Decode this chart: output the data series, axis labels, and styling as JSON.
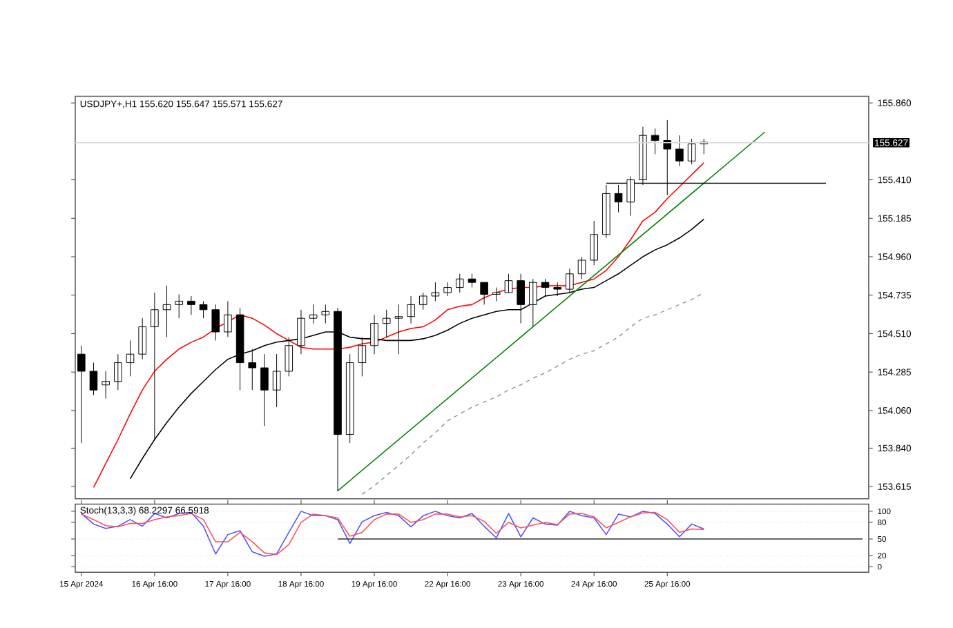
{
  "chart_data": [
    {
      "type": "candlestick",
      "title": "USDJPY+,H1 155.620 155.647 155.571 155.627",
      "color": "#000000",
      "categories": [
        null,
        null,
        null,
        null,
        null,
        null,
        null,
        null,
        null,
        null,
        null,
        null,
        null,
        null,
        null,
        null,
        null,
        null,
        null,
        null,
        null,
        null,
        null,
        null,
        null,
        null,
        null,
        null,
        null,
        null,
        null,
        null,
        null,
        null,
        null,
        null,
        null,
        null,
        null,
        null,
        null,
        null,
        null,
        null,
        null,
        null,
        null,
        null,
        null,
        null,
        null,
        null,
        null,
        null,
        null,
        null,
        null,
        null,
        null,
        null,
        null,
        null,
        null,
        null,
        null
      ],
      "ohlc": [
        [
          154.39,
          154.44,
          153.87,
          154.29
        ],
        [
          154.29,
          154.34,
          154.15,
          154.18
        ],
        [
          154.21,
          154.29,
          154.13,
          154.23
        ],
        [
          154.23,
          154.39,
          154.18,
          154.34
        ],
        [
          154.34,
          154.47,
          154.26,
          154.39
        ],
        [
          154.39,
          154.6,
          154.36,
          154.55
        ],
        [
          154.55,
          154.75,
          153.89,
          154.65
        ],
        [
          154.65,
          154.79,
          154.49,
          154.68
        ],
        [
          154.68,
          154.74,
          154.6,
          154.7
        ],
        [
          154.7,
          154.73,
          154.62,
          154.68
        ],
        [
          154.68,
          154.7,
          154.6,
          154.65
        ],
        [
          154.65,
          154.68,
          154.47,
          154.52
        ],
        [
          154.52,
          154.7,
          154.49,
          154.62
        ],
        [
          154.62,
          154.66,
          154.18,
          154.34
        ],
        [
          154.34,
          154.42,
          154.18,
          154.31
        ],
        [
          154.31,
          154.39,
          153.97,
          154.18
        ],
        [
          154.18,
          154.39,
          154.08,
          154.29
        ],
        [
          154.29,
          154.49,
          154.26,
          154.44
        ],
        [
          154.44,
          154.65,
          154.39,
          154.6
        ],
        [
          154.6,
          154.68,
          154.57,
          154.62
        ],
        [
          154.62,
          154.68,
          154.57,
          154.64
        ],
        [
          154.64,
          154.66,
          153.59,
          153.92
        ],
        [
          153.92,
          154.39,
          153.87,
          154.34
        ],
        [
          154.34,
          154.49,
          154.26,
          154.44
        ],
        [
          154.44,
          154.62,
          154.39,
          154.57
        ],
        [
          154.57,
          154.65,
          154.49,
          154.6
        ],
        [
          154.6,
          154.68,
          154.39,
          154.61
        ],
        [
          154.61,
          154.73,
          154.57,
          154.68
        ],
        [
          154.68,
          154.75,
          154.65,
          154.73
        ],
        [
          154.73,
          154.81,
          154.7,
          154.75
        ],
        [
          154.75,
          154.81,
          154.73,
          154.78
        ],
        [
          154.78,
          154.86,
          154.75,
          154.83
        ],
        [
          154.83,
          154.86,
          154.78,
          154.81
        ],
        [
          154.81,
          154.81,
          154.68,
          154.74
        ],
        [
          154.74,
          154.78,
          154.7,
          154.75
        ],
        [
          154.75,
          154.86,
          154.75,
          154.82
        ],
        [
          154.82,
          154.86,
          154.57,
          154.68
        ],
        [
          154.68,
          154.83,
          154.55,
          154.81
        ],
        [
          154.81,
          154.83,
          154.73,
          154.78
        ],
        [
          154.78,
          154.81,
          154.73,
          154.77
        ],
        [
          154.77,
          154.89,
          154.75,
          154.86
        ],
        [
          154.86,
          154.96,
          154.83,
          154.94
        ],
        [
          154.94,
          155.17,
          154.91,
          155.09
        ],
        [
          155.09,
          155.38,
          155.07,
          155.33
        ],
        [
          155.33,
          155.38,
          155.22,
          155.28
        ],
        [
          155.28,
          155.43,
          155.2,
          155.41
        ],
        [
          155.41,
          155.72,
          155.38,
          155.67
        ],
        [
          155.67,
          155.71,
          155.56,
          155.64
        ],
        [
          155.64,
          155.76,
          155.32,
          155.59
        ],
        [
          155.59,
          155.67,
          155.49,
          155.52
        ],
        [
          155.52,
          155.65,
          155.5,
          155.62
        ],
        [
          155.62,
          155.65,
          155.56,
          155.63
        ],
        null,
        null,
        null,
        null,
        null,
        null,
        null,
        null,
        null,
        null,
        null,
        null,
        null
      ],
      "series": [
        {
          "type": "line",
          "color": "#ff0000",
          "values": [
            null,
            153.61,
            153.75,
            153.89,
            154.04,
            154.18,
            154.29,
            154.36,
            154.42,
            154.46,
            154.49,
            154.54,
            154.58,
            154.62,
            154.6,
            154.56,
            154.51,
            154.47,
            154.43,
            154.42,
            154.42,
            154.42,
            154.43,
            154.45,
            154.46,
            154.49,
            154.52,
            154.54,
            154.55,
            154.59,
            154.65,
            154.67,
            154.68,
            154.72,
            154.75,
            154.77,
            154.78,
            154.78,
            154.79,
            154.79,
            154.79,
            154.81,
            154.83,
            154.88,
            154.96,
            155.06,
            155.17,
            155.22,
            155.3,
            155.37,
            155.44,
            155.51,
            null,
            null,
            null,
            null,
            null,
            null,
            null,
            null,
            null,
            null,
            null,
            null,
            null
          ]
        },
        {
          "type": "line",
          "color": "#000000",
          "values": [
            null,
            null,
            null,
            null,
            153.66,
            153.78,
            153.89,
            153.99,
            154.08,
            154.16,
            154.23,
            154.3,
            154.36,
            154.39,
            154.41,
            154.44,
            154.46,
            154.47,
            154.48,
            154.5,
            154.52,
            154.52,
            154.49,
            154.48,
            154.48,
            154.47,
            154.47,
            154.47,
            154.48,
            154.5,
            154.53,
            154.57,
            154.6,
            154.62,
            154.64,
            154.65,
            154.65,
            154.69,
            154.73,
            154.74,
            154.75,
            154.77,
            154.78,
            154.82,
            154.86,
            154.91,
            154.96,
            155.0,
            155.03,
            155.07,
            155.12,
            155.18,
            null,
            null,
            null,
            null,
            null,
            null,
            null,
            null,
            null,
            null,
            null,
            null,
            null
          ]
        },
        {
          "type": "line",
          "color": "#999999",
          "line_style": "dashed",
          "values": [
            null,
            null,
            null,
            null,
            null,
            null,
            null,
            null,
            null,
            null,
            null,
            null,
            null,
            null,
            null,
            null,
            null,
            null,
            null,
            null,
            null,
            null,
            null,
            153.57,
            153.62,
            153.68,
            153.74,
            153.8,
            153.87,
            153.93,
            154.0,
            154.04,
            154.08,
            154.11,
            154.14,
            154.18,
            154.21,
            154.25,
            154.28,
            154.32,
            154.36,
            154.39,
            154.41,
            154.45,
            154.49,
            154.55,
            154.6,
            154.62,
            154.65,
            154.68,
            154.71,
            154.75,
            null,
            null,
            null,
            null,
            null,
            null,
            null,
            null,
            null,
            null,
            null,
            null,
            null
          ]
        },
        {
          "type": "line",
          "color": "#008000",
          "values": [
            null,
            null,
            null,
            null,
            null,
            null,
            null,
            null,
            null,
            null,
            null,
            null,
            null,
            null,
            null,
            null,
            null,
            null,
            null,
            null,
            null,
            153.59,
            null,
            null,
            null,
            null,
            null,
            null,
            null,
            null,
            null,
            null,
            null,
            null,
            null,
            null,
            null,
            null,
            null,
            null,
            null,
            null,
            null,
            null,
            null,
            null,
            null,
            null,
            null,
            null,
            null,
            null,
            null,
            null,
            null,
            null,
            155.69,
            null,
            null,
            null,
            null,
            null,
            null,
            null,
            null
          ]
        },
        {
          "type": "line",
          "color": "#000000",
          "values": [
            null,
            null,
            null,
            null,
            null,
            null,
            null,
            null,
            null,
            null,
            null,
            null,
            null,
            null,
            null,
            null,
            null,
            null,
            null,
            null,
            null,
            null,
            null,
            null,
            null,
            null,
            null,
            null,
            null,
            null,
            null,
            null,
            null,
            null,
            null,
            null,
            null,
            null,
            null,
            null,
            null,
            null,
            null,
            155.39,
            null,
            null,
            null,
            null,
            null,
            null,
            null,
            null,
            null,
            null,
            null,
            null,
            null,
            null,
            null,
            null,
            null,
            155.39,
            null,
            null,
            null
          ]
        }
      ],
      "ref_lines": [
        {
          "axis": "y",
          "value": 155.627,
          "label": "155.627",
          "color": "#d9d9d9"
        }
      ],
      "ylim": [
        153.544,
        155.899
      ],
      "yticks": [
        {
          "value": 153.615,
          "label": "153.615"
        },
        {
          "value": 153.84,
          "label": "153.840"
        },
        {
          "value": 154.06,
          "label": "154.060"
        },
        {
          "value": 154.285,
          "label": "154.285"
        },
        {
          "value": 154.51,
          "label": "154.510"
        },
        {
          "value": 154.735,
          "label": "154.735"
        },
        {
          "value": 154.96,
          "label": "154.960"
        },
        {
          "value": 155.185,
          "label": "155.185"
        },
        {
          "value": 155.41,
          "label": "155.410"
        },
        {
          "value": 155.86,
          "label": "155.860"
        }
      ],
      "tick_labels": "y"
    },
    {
      "type": "line",
      "title": "Stoch(13,3,3) 68.2297 66.5918",
      "categories": [
        "15 Apr 2024",
        null,
        null,
        null,
        null,
        null,
        "16 Apr 16:00",
        null,
        null,
        null,
        null,
        null,
        "17 Apr 16:00",
        null,
        null,
        null,
        null,
        null,
        "18 Apr 16:00",
        null,
        null,
        null,
        null,
        null,
        "19 Apr 16:00",
        null,
        null,
        null,
        null,
        null,
        "22 Apr 16:00",
        null,
        null,
        null,
        null,
        null,
        "23 Apr 16:00",
        null,
        null,
        null,
        null,
        null,
        "24 Apr 16:00",
        null,
        null,
        null,
        null,
        null,
        "25 Apr 16:00",
        null,
        null,
        null,
        null,
        null,
        null,
        null,
        null,
        null,
        null,
        null,
        null,
        null,
        null,
        null,
        null
      ],
      "series": [
        {
          "color": "#5050ff",
          "values": [
            96,
            77,
            69,
            73,
            85,
            73,
            96,
            88,
            96,
            98,
            73,
            23,
            58,
            65,
            27,
            19,
            23,
            62,
            100,
            92,
            92,
            85,
            42,
            81,
            92,
            98,
            92,
            72,
            92,
            100,
            92,
            88,
            96,
            73,
            52,
            96,
            54,
            88,
            77,
            75,
            100,
            92,
            88,
            58,
            95,
            90,
            100,
            96,
            77,
            54,
            77,
            68,
            null,
            null,
            null,
            null,
            null,
            null,
            null,
            null,
            null,
            null,
            null,
            null,
            null
          ]
        },
        {
          "color": "#ff5050",
          "values": [
            95,
            85,
            74,
            72,
            78,
            78,
            85,
            90,
            92,
            96,
            85,
            45,
            45,
            62,
            45,
            25,
            22,
            40,
            80,
            95,
            92,
            88,
            55,
            62,
            85,
            95,
            95,
            80,
            85,
            95,
            95,
            90,
            92,
            82,
            60,
            80,
            70,
            75,
            80,
            76,
            95,
            96,
            90,
            70,
            80,
            90,
            97,
            98,
            85,
            62,
            68,
            67,
            null,
            null,
            null,
            null,
            null,
            null,
            null,
            null,
            null,
            null,
            null,
            null,
            null
          ]
        },
        {
          "color": "#333333",
          "values": [
            null,
            null,
            null,
            null,
            null,
            null,
            null,
            null,
            null,
            null,
            null,
            null,
            null,
            null,
            null,
            null,
            null,
            null,
            null,
            null,
            null,
            50,
            null,
            null,
            null,
            null,
            null,
            null,
            null,
            null,
            null,
            null,
            null,
            null,
            null,
            null,
            null,
            null,
            null,
            null,
            null,
            null,
            null,
            null,
            null,
            null,
            null,
            null,
            null,
            null,
            null,
            null,
            null,
            null,
            null,
            null,
            null,
            null,
            null,
            null,
            null,
            null,
            null,
            null,
            50
          ]
        }
      ],
      "ylim": [
        -10,
        113
      ],
      "yticks": [
        0,
        20,
        50,
        80,
        100
      ],
      "grid": "y"
    }
  ]
}
